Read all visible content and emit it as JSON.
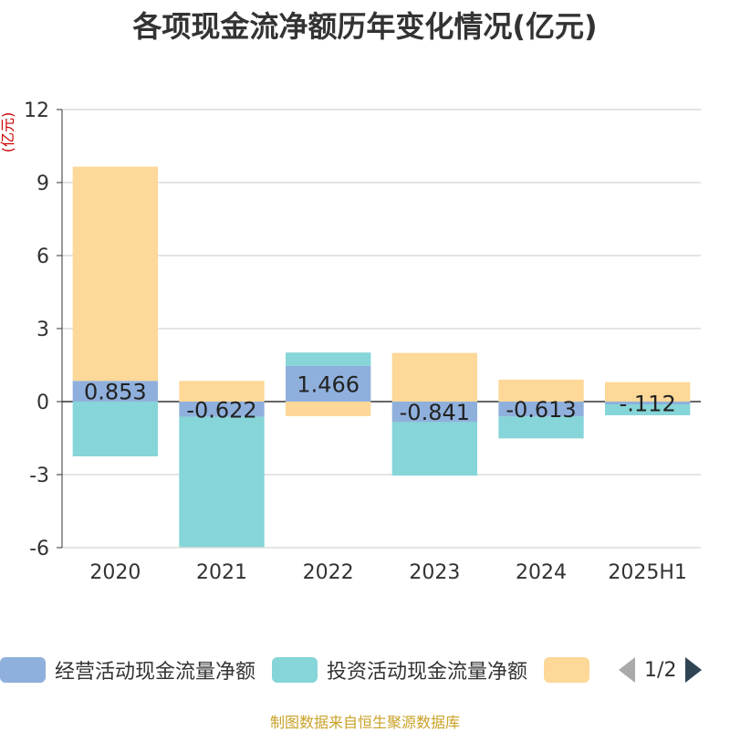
{
  "title": "各项现金流净额历年变化情况(亿元)",
  "source": "制图数据来自恒生聚源数据库",
  "pager": {
    "text": "1/2"
  },
  "chart_data": {
    "type": "bar",
    "stacked": true,
    "ylabel": "(亿元)",
    "ylim": [
      -6,
      12
    ],
    "yticks": [
      -6,
      -3,
      0,
      3,
      6,
      9,
      12
    ],
    "grid": true,
    "legend_position": "bottom",
    "categories": [
      "2020",
      "2021",
      "2022",
      "2023",
      "2024",
      "2025H1"
    ],
    "series": [
      {
        "name": "经营活动现金流量净额",
        "color": "#8fb0dc",
        "values": [
          0.853,
          -0.622,
          1.466,
          -0.841,
          -0.613,
          -0.112
        ],
        "labels": [
          "0.853",
          "-0.622",
          "1.466",
          "-0.841",
          "-0.613",
          "-.112"
        ]
      },
      {
        "name": "投资活动现金流量净额",
        "color": "#86d5d8",
        "values": [
          -2.25,
          -5.35,
          0.55,
          -2.2,
          -0.9,
          -0.45
        ]
      },
      {
        "name": "",
        "color": "#fdd898",
        "values": [
          8.8,
          0.85,
          -0.6,
          2.0,
          0.9,
          0.8
        ]
      }
    ]
  }
}
